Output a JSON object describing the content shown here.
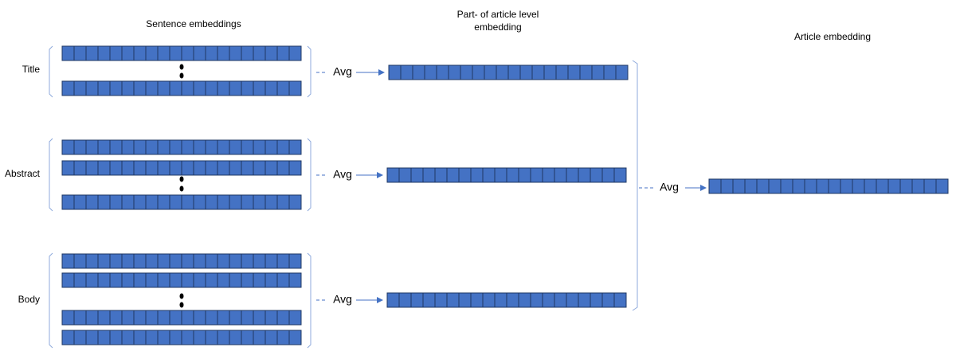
{
  "headers": {
    "sentence": "Sentence embeddings",
    "part": [
      "Part- of article level",
      "embedding"
    ],
    "article": "Article embedding"
  },
  "groups": [
    {
      "label": "Title",
      "op": "Avg"
    },
    {
      "label": "Abstract",
      "op": "Avg"
    },
    {
      "label": "Body",
      "op": "Avg"
    }
  ],
  "final_op": "Avg"
}
